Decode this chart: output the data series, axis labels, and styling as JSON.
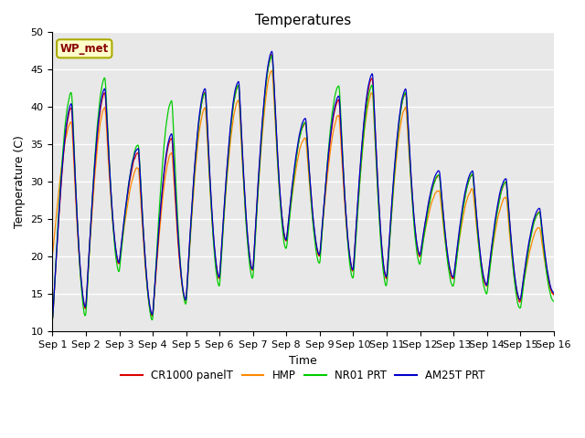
{
  "title": "Temperatures",
  "xlabel": "Time",
  "ylabel": "Temperature (C)",
  "ylim": [
    10,
    50
  ],
  "xlim_days": 15,
  "background_color": "#e8e8e8",
  "grid_color": "white",
  "series_colors": {
    "CR1000 panelT": "#dd0000",
    "HMP": "#ff8800",
    "NR01 PRT": "#00cc00",
    "AM25T PRT": "#0000cc"
  },
  "legend_label": "WP_met",
  "legend_box_color": "#ffffcc",
  "legend_box_edge": "#aaaa00",
  "tick_fontsize": 8,
  "label_fontsize": 9,
  "title_fontsize": 11,
  "day_peaks": [
    40,
    42,
    34,
    36,
    42,
    43,
    47,
    38,
    41,
    44,
    42,
    31,
    31,
    30,
    26,
    26
  ],
  "day_mins": [
    11,
    13,
    19,
    12,
    14,
    17,
    18,
    22,
    20,
    18,
    17,
    20,
    17,
    16,
    14,
    15
  ],
  "hmp_peak_offset": [
    -2,
    -2,
    -2,
    -2,
    -2,
    -2,
    -2,
    -2,
    -2,
    -2,
    -2,
    -2,
    -2,
    -2,
    -2,
    -2
  ],
  "hmp_min_offset": [
    9,
    0,
    0,
    0,
    0,
    0,
    0,
    0,
    0,
    0,
    0,
    0,
    0,
    0,
    0,
    0
  ],
  "nr01_peak_offset": [
    2,
    2,
    1,
    5,
    0,
    0,
    0,
    0,
    2,
    -1,
    0,
    0,
    0,
    0,
    0,
    0
  ],
  "nr01_min_offset": [
    -0.5,
    -1,
    -1,
    -0.5,
    -0.5,
    -1,
    -1,
    -1,
    -1,
    -1,
    -1,
    -1,
    -1,
    -1,
    -1,
    -1
  ],
  "peak_time": 0.58,
  "pts_per_day": 144
}
